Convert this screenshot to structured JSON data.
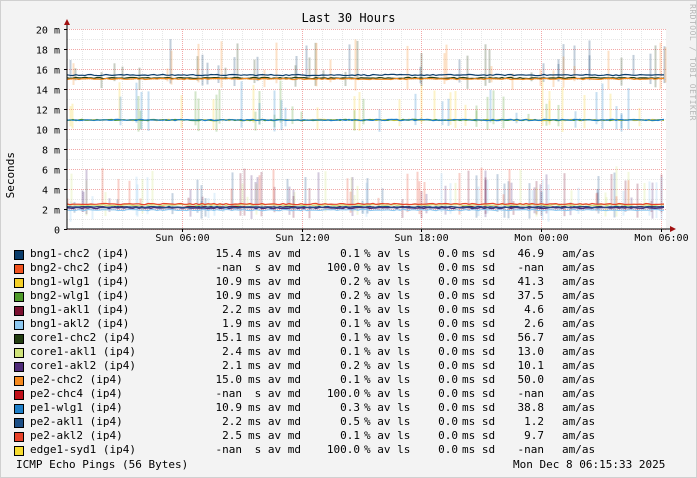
{
  "chart_data": {
    "type": "line",
    "title": "Last 30 Hours",
    "ylabel": "Seconds",
    "ylim": [
      0,
      0.02
    ],
    "yticks": [
      {
        "value": 0.0,
        "label": "0"
      },
      {
        "value": 0.002,
        "label": "2 m"
      },
      {
        "value": 0.004,
        "label": "4 m"
      },
      {
        "value": 0.006,
        "label": "6 m"
      },
      {
        "value": 0.008,
        "label": "8 m"
      },
      {
        "value": 0.01,
        "label": "10 m"
      },
      {
        "value": 0.012,
        "label": "12 m"
      },
      {
        "value": 0.014,
        "label": "14 m"
      },
      {
        "value": 0.016,
        "label": "16 m"
      },
      {
        "value": 0.018,
        "label": "18 m"
      },
      {
        "value": 0.02,
        "label": "20 m"
      }
    ],
    "xrange_hours": [
      0,
      30
    ],
    "xticks": [
      {
        "hour": 5.75,
        "label": "Sun 06:00"
      },
      {
        "hour": 11.75,
        "label": "Sun 12:00"
      },
      {
        "hour": 17.75,
        "label": "Sun 18:00"
      },
      {
        "hour": 23.75,
        "label": "Mon 00:00"
      },
      {
        "hour": 29.75,
        "label": "Mon 06:00"
      }
    ],
    "grid": true,
    "series": [
      {
        "name": "bng1-chc2 (ip4)",
        "color": "#0b3d6b",
        "avg": "15.4",
        "avg_unit": "ms",
        "loss": "0.1",
        "sd": "0.0",
        "am": "46.9",
        "level": 0.0154
      },
      {
        "name": "bng2-chc2 (ip4)",
        "color": "#f0521e",
        "avg": "-nan",
        "avg_unit": " s",
        "loss": "100.0",
        "sd": "0.0",
        "am": "-nan",
        "level": null
      },
      {
        "name": "bng1-wlg1 (ip4)",
        "color": "#f5d028",
        "avg": "10.9",
        "avg_unit": "ms",
        "loss": "0.2",
        "sd": "0.0",
        "am": "41.3",
        "level": 0.0109
      },
      {
        "name": "bng2-wlg1 (ip4)",
        "color": "#4f9a2a",
        "avg": "10.9",
        "avg_unit": "ms",
        "loss": "0.2",
        "sd": "0.0",
        "am": "37.5",
        "level": 0.0109
      },
      {
        "name": "bng1-akl1 (ip4)",
        "color": "#7a1030",
        "avg": "2.2",
        "avg_unit": "ms",
        "loss": "0.1",
        "sd": "0.0",
        "am": "4.6",
        "level": 0.0022
      },
      {
        "name": "bng1-akl2 (ip4)",
        "color": "#8ec8f0",
        "avg": "1.9",
        "avg_unit": "ms",
        "loss": "0.1",
        "sd": "0.0",
        "am": "2.6",
        "level": 0.0019
      },
      {
        "name": "core1-chc2 (ip4)",
        "color": "#223d10",
        "avg": "15.1",
        "avg_unit": "ms",
        "loss": "0.1",
        "sd": "0.0",
        "am": "56.7",
        "level": 0.0151
      },
      {
        "name": "core1-akl1 (ip4)",
        "color": "#cfe37a",
        "avg": "2.4",
        "avg_unit": "ms",
        "loss": "0.1",
        "sd": "0.0",
        "am": "13.0",
        "level": 0.0024
      },
      {
        "name": "core1-akl2 (ip4)",
        "color": "#4e2a78",
        "avg": "2.1",
        "avg_unit": "ms",
        "loss": "0.2",
        "sd": "0.0",
        "am": "10.1",
        "level": 0.0021
      },
      {
        "name": "pe2-chc2 (ip4)",
        "color": "#f5891e",
        "avg": "15.0",
        "avg_unit": "ms",
        "loss": "0.1",
        "sd": "0.0",
        "am": "50.0",
        "level": 0.015
      },
      {
        "name": "pe2-chc4 (ip4)",
        "color": "#c0101a",
        "avg": "-nan",
        "avg_unit": " s",
        "loss": "100.0",
        "sd": "0.0",
        "am": "-nan",
        "level": null
      },
      {
        "name": "pe1-wlg1 (ip4)",
        "color": "#1e7fc8",
        "avg": "10.9",
        "avg_unit": "ms",
        "loss": "0.3",
        "sd": "0.0",
        "am": "38.8",
        "level": 0.0109
      },
      {
        "name": "pe2-akl1 (ip4)",
        "color": "#1d4f86",
        "avg": "2.2",
        "avg_unit": "ms",
        "loss": "0.5",
        "sd": "0.0",
        "am": "1.2",
        "level": 0.0022
      },
      {
        "name": "pe2-akl2 (ip4)",
        "color": "#e8432a",
        "avg": "2.5",
        "avg_unit": "ms",
        "loss": "0.1",
        "sd": "0.0",
        "am": "9.7",
        "level": 0.0025
      },
      {
        "name": "edge1-syd1 (ip4)",
        "color": "#f7dc30",
        "avg": "-nan",
        "avg_unit": " s",
        "loss": "100.0",
        "sd": "0.0",
        "am": "-nan",
        "level": null
      }
    ]
  },
  "legend_labels": {
    "av_md": "av md",
    "loss_unit": "% av ls",
    "sd_unit": "ms sd",
    "am_unit": "am/as"
  },
  "watermark": "RRDTOOL / TOBI OETIKER",
  "footer": {
    "left": "ICMP Echo Pings (56 Bytes)",
    "right": "Mon Dec  8 06:15:33 2025"
  }
}
